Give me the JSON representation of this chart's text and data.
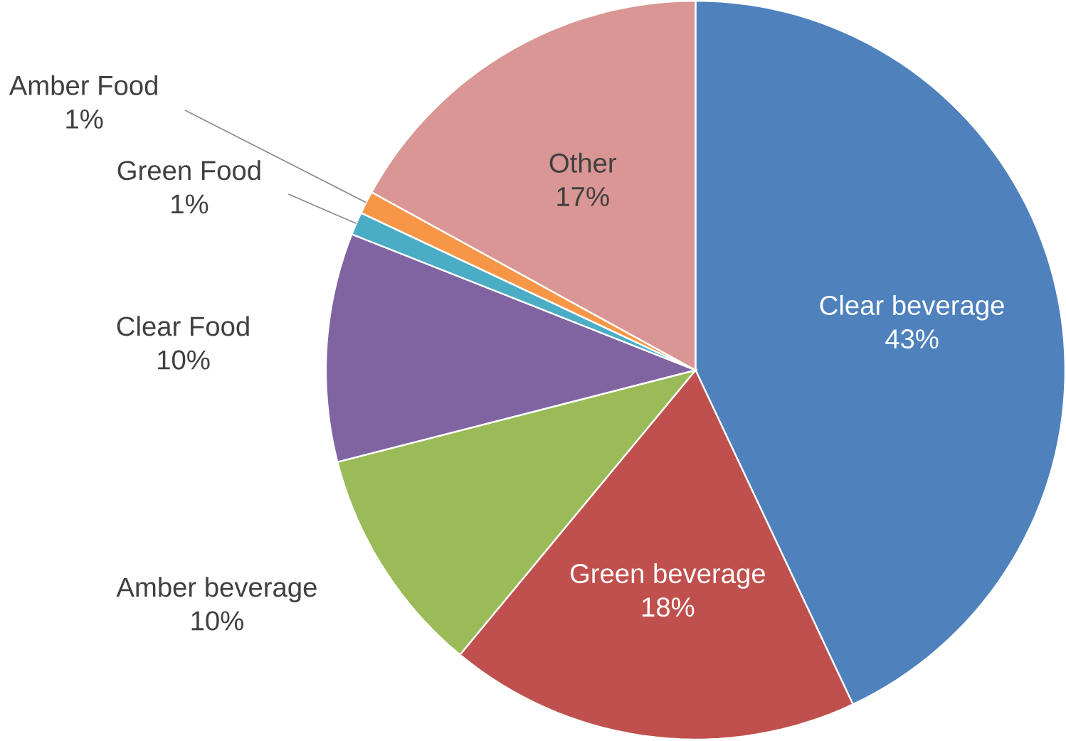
{
  "chart_data": {
    "type": "pie",
    "categories": [
      "Clear beverage",
      "Green beverage",
      "Amber beverage",
      "Clear Food",
      "Green Food",
      "Amber Food",
      "Other"
    ],
    "values": [
      43,
      18,
      10,
      10,
      1,
      1,
      17
    ],
    "value_labels": [
      "43%",
      "18%",
      "10%",
      "10%",
      "1%",
      "1%",
      "17%"
    ],
    "colors": [
      "#4f81bd",
      "#c0504d",
      "#9bbb59",
      "#8064a2",
      "#4bacc6",
      "#f79646",
      "#d99694"
    ]
  }
}
